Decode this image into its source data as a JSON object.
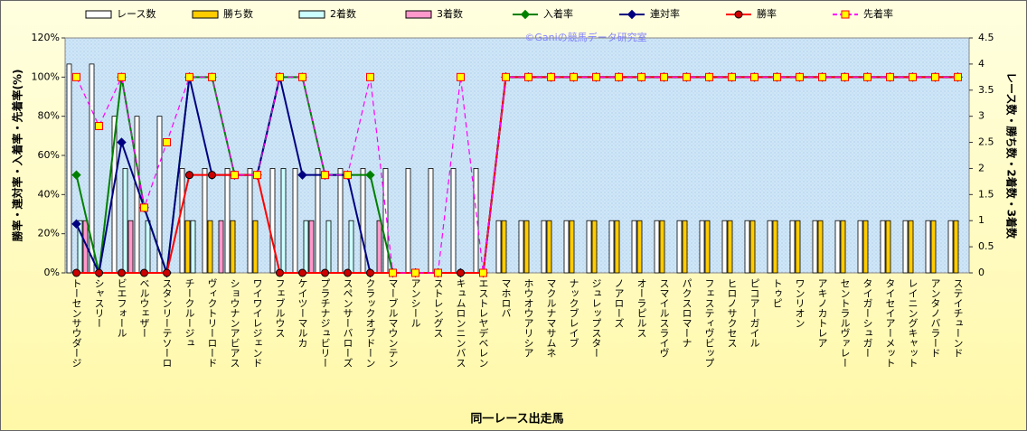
{
  "chart_data": {
    "type": "combo",
    "categories": [
      "トーセンサウダージ",
      "シャスリー",
      "ビエフォール",
      "ベルウェザー",
      "スタンリーテソーロ",
      "チークルージュ",
      "ヴィクトリーロード",
      "ショウナンアビアス",
      "ワイワイレジェンド",
      "フェブルウス",
      "ケイツーマルカ",
      "プラチナジュビリー",
      "スペンサーバローズ",
      "クラックオブドーン",
      "マーブルマウンテン",
      "アンシール",
      "ストレングス",
      "キュムロンニンバス",
      "エストレヤデベレン",
      "マホロバ",
      "ホウオウアリシア",
      "マクルナマサムネ",
      "ナックブレイブ",
      "ジュレップスター",
      "ノアローズ",
      "オーラピルス",
      "スマイルスライヴ",
      "パクスロマーナ",
      "フェスティヴビップ",
      "ヒロノサクセス",
      "ピコアーガイル",
      "トゥピ",
      "ワンリオン",
      "アキノカトレア",
      "セントラルヴァレー",
      "タイガーシュガー",
      "タイセイアーメット",
      "レイニングキャット",
      "アンタノバラード",
      "ステイチューンド"
    ],
    "series": [
      {
        "name": "レース数",
        "kind": "bar",
        "axis": "y2",
        "color": "#ffffff",
        "values": [
          4,
          4,
          3,
          3,
          3,
          2,
          2,
          2,
          2,
          2,
          2,
          2,
          2,
          2,
          2,
          2,
          2,
          2,
          2,
          1,
          1,
          1,
          1,
          1,
          1,
          1,
          1,
          1,
          1,
          1,
          1,
          1,
          1,
          1,
          1,
          1,
          1,
          1,
          1,
          1
        ]
      },
      {
        "name": "勝ち数",
        "kind": "bar",
        "axis": "y2",
        "color": "#ffcc00",
        "values": [
          0,
          0,
          0,
          0,
          0,
          1,
          1,
          1,
          1,
          0,
          0,
          0,
          0,
          0,
          0,
          0,
          0,
          0,
          0,
          1,
          1,
          1,
          1,
          1,
          1,
          1,
          1,
          1,
          1,
          1,
          1,
          1,
          1,
          1,
          1,
          1,
          1,
          1,
          1,
          1
        ]
      },
      {
        "name": "2着数",
        "kind": "bar",
        "axis": "y2",
        "color": "#ccffff",
        "values": [
          1,
          0,
          2,
          1,
          0,
          1,
          0,
          0,
          0,
          2,
          1,
          1,
          1,
          0,
          0,
          0,
          0,
          0,
          0,
          0,
          0,
          0,
          0,
          0,
          0,
          0,
          0,
          0,
          0,
          0,
          0,
          0,
          0,
          0,
          0,
          0,
          0,
          0,
          0,
          0
        ]
      },
      {
        "name": "3着数",
        "kind": "bar",
        "axis": "y2",
        "color": "#ff99cc",
        "values": [
          1,
          0,
          1,
          0,
          0,
          0,
          1,
          0,
          0,
          0,
          1,
          0,
          0,
          1,
          0,
          0,
          0,
          0,
          0,
          0,
          0,
          0,
          0,
          0,
          0,
          0,
          0,
          0,
          0,
          0,
          0,
          0,
          0,
          0,
          0,
          0,
          0,
          0,
          0,
          0
        ]
      },
      {
        "name": "入着率",
        "kind": "line",
        "marker": "diamond",
        "color": "#008000",
        "values": [
          50,
          0,
          100,
          33.3,
          0,
          100,
          100,
          50,
          50,
          100,
          100,
          50,
          50,
          50,
          0,
          0,
          0,
          0,
          0,
          100,
          100,
          100,
          100,
          100,
          100,
          100,
          100,
          100,
          100,
          100,
          100,
          100,
          100,
          100,
          100,
          100,
          100,
          100,
          100,
          100
        ]
      },
      {
        "name": "連対率",
        "kind": "line",
        "marker": "diamond",
        "color": "#000080",
        "values": [
          25,
          0,
          66.7,
          33.3,
          0,
          100,
          50,
          50,
          50,
          100,
          50,
          50,
          50,
          0,
          0,
          0,
          0,
          0,
          0,
          100,
          100,
          100,
          100,
          100,
          100,
          100,
          100,
          100,
          100,
          100,
          100,
          100,
          100,
          100,
          100,
          100,
          100,
          100,
          100,
          100
        ]
      },
      {
        "name": "勝率",
        "kind": "line",
        "marker": "circle",
        "color": "#ff0000",
        "marker_color": "#cc0000",
        "values": [
          0,
          0,
          0,
          0,
          0,
          50,
          50,
          50,
          50,
          0,
          0,
          0,
          0,
          0,
          0,
          0,
          0,
          0,
          0,
          100,
          100,
          100,
          100,
          100,
          100,
          100,
          100,
          100,
          100,
          100,
          100,
          100,
          100,
          100,
          100,
          100,
          100,
          100,
          100,
          100
        ]
      },
      {
        "name": "先着率",
        "kind": "line",
        "marker": "square",
        "dashed": true,
        "color": "#ff00ff",
        "marker_color": "#ffff00",
        "values": [
          100,
          75,
          100,
          33.3,
          66.7,
          100,
          100,
          50,
          50,
          100,
          100,
          50,
          50,
          100,
          0,
          0,
          0,
          100,
          0,
          100,
          100,
          100,
          100,
          100,
          100,
          100,
          100,
          100,
          100,
          100,
          100,
          100,
          100,
          100,
          100,
          100,
          100,
          100,
          100,
          100
        ]
      }
    ],
    "ylim": [
      0,
      120
    ],
    "yticks": [
      {
        "value": 0,
        "label": "0%"
      },
      {
        "value": 20,
        "label": "20%"
      },
      {
        "value": 40,
        "label": "40%"
      },
      {
        "value": 60,
        "label": "60%"
      },
      {
        "value": 80,
        "label": "80%"
      },
      {
        "value": 100,
        "label": "100%"
      },
      {
        "value": 120,
        "label": "120%"
      }
    ],
    "y2lim": [
      0,
      4.5
    ],
    "y2ticks": [
      0,
      0.5,
      1,
      1.5,
      2,
      2.5,
      3,
      3.5,
      4,
      4.5
    ],
    "ylabel": "勝率・連対率・入着率・先着率(%)",
    "y2label": "レース数・勝ち数・2着数・3着数",
    "xlabel": "同一レース出走馬",
    "annotation": "©Ganiの競馬データ研究室"
  }
}
